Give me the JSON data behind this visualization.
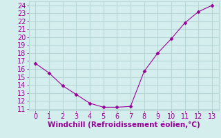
{
  "x": [
    0,
    1,
    2,
    3,
    4,
    5,
    6,
    7,
    8,
    9,
    10,
    11,
    12,
    13
  ],
  "y": [
    16.7,
    15.5,
    13.9,
    12.8,
    11.7,
    11.2,
    11.2,
    11.3,
    15.7,
    18.0,
    19.8,
    21.8,
    23.2,
    24.0
  ],
  "line_color": "#990099",
  "marker": "D",
  "marker_size": 2.5,
  "bg_color": "#d4eeee",
  "grid_color": "#b8d8d8",
  "xlabel": "Windchill (Refroidissement éolien,°C)",
  "xlabel_color": "#990099",
  "xlabel_fontsize": 7.5,
  "tick_color": "#990099",
  "tick_fontsize": 7,
  "xlim": [
    -0.5,
    13.5
  ],
  "ylim": [
    10.8,
    24.5
  ],
  "yticks": [
    11,
    12,
    13,
    14,
    15,
    16,
    17,
    18,
    19,
    20,
    21,
    22,
    23,
    24
  ],
  "xticks": [
    0,
    1,
    2,
    3,
    4,
    5,
    6,
    7,
    8,
    9,
    10,
    11,
    12,
    13
  ]
}
